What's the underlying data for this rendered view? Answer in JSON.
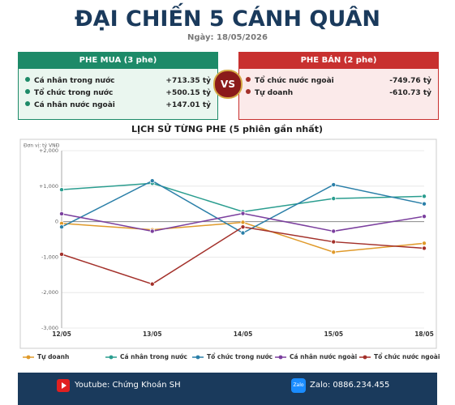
{
  "header": {
    "title": "ĐẠI CHIẾN 5 CÁNH QUÂN",
    "date": "Ngày: 18/05/2026"
  },
  "buy_side": {
    "title": "PHE MUA  (3 phe)",
    "rows": [
      {
        "label": "Cá nhân trong nước",
        "value": "+713.35 tỷ"
      },
      {
        "label": "Tổ chức trong nước",
        "value": "+500.15 tỷ"
      },
      {
        "label": "Cá nhân nước ngoài",
        "value": "+147.01 tỷ"
      }
    ]
  },
  "vs": "VS",
  "sell_side": {
    "title": "PHE BÁN  (2 phe)",
    "rows": [
      {
        "label": "Tổ chức nước ngoài",
        "value": "-749.76 tỷ"
      },
      {
        "label": "Tự doanh",
        "value": "-610.73 tỷ"
      }
    ]
  },
  "chart_data": {
    "type": "line",
    "title": "LỊCH SỬ TỪNG PHE (5 phiên gần nhất)",
    "note": "Đơn vị: tỷ VNĐ",
    "categories": [
      "12/05",
      "13/05",
      "14/05",
      "15/05",
      "18/05"
    ],
    "series": [
      {
        "name": "Tự doanh",
        "color": "#e09a2a",
        "values": [
          -50,
          -230,
          -20,
          -860,
          -610.73
        ]
      },
      {
        "name": "Cá nhân trong nước",
        "color": "#2a9d8f",
        "values": [
          900,
          1080,
          280,
          650,
          713.35
        ]
      },
      {
        "name": "Tổ chức trong nước",
        "color": "#2a7fa8",
        "values": [
          -150,
          1150,
          -320,
          1040,
          500.15
        ]
      },
      {
        "name": "Cá nhân nước ngoài",
        "color": "#7b3f9e",
        "values": [
          220,
          -270,
          230,
          -270,
          147.01
        ]
      },
      {
        "name": "Tổ chức nước ngoài",
        "color": "#a3302a",
        "values": [
          -920,
          -1760,
          -150,
          -570,
          -749.76
        ]
      }
    ],
    "ylim": [
      -3000,
      2000
    ],
    "yticks": [
      {
        "value": -3000,
        "label": "-3,000"
      },
      {
        "value": -2000,
        "label": "-2,000"
      },
      {
        "value": -1000,
        "label": "-1,000"
      },
      0,
      {
        "value": 1000,
        "label": "+1,000"
      },
      {
        "value": 2000,
        "label": "+2,000"
      }
    ],
    "grid": true
  },
  "footer": {
    "youtube": "Youtube: Chứng Khoán SH",
    "zalo_icon": "Zalo",
    "zalo": "Zalo: 0886.234.455"
  }
}
